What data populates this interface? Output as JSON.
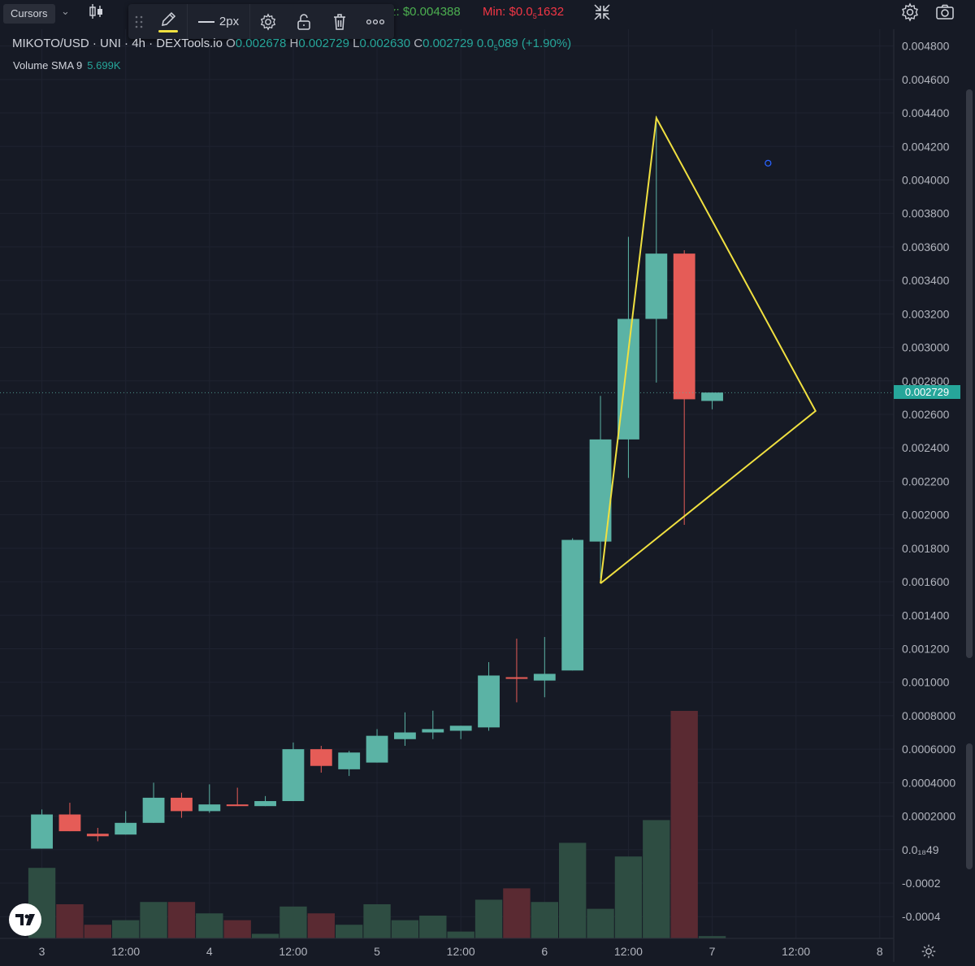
{
  "top_bar": {
    "cursors_tooltip": "Cursors",
    "max_text": "z: $0.004388",
    "min_text": "Min: $0.0",
    "min_sub": "5",
    "min_tail": "1632"
  },
  "drawing_toolbar": {
    "width_label": "2px",
    "pencil_color": "#f0e040"
  },
  "legend": {
    "symbol": "MIKOTO/USD · UNI · 4h · DEXTools.io",
    "o_key": "O",
    "o_val": "0.002678",
    "h_key": "H",
    "h_val": "0.002729",
    "l_key": "L",
    "l_val": "0.002630",
    "c_key": "C",
    "c_val": "0.002729",
    "change_prefix": "0.0",
    "change_sub": "5",
    "change_tail": "089 (+1.90%)"
  },
  "volume_indicator": {
    "label": "Volume SMA 9",
    "value": "5.699K"
  },
  "last_price_label": "0.002729",
  "colors": {
    "background": "#161a25",
    "grid": "#1f2330",
    "up": "#5bb3a5",
    "down": "#e55c57",
    "vol_up": "#2e4d42",
    "vol_down": "#5a2a32",
    "drawing": "#f0e040"
  },
  "chart_data": {
    "type": "candlestick",
    "interval": "4h",
    "y_axis": {
      "range": [
        -0.00053,
        0.0049
      ],
      "tick_values": [
        0.0048,
        0.0046,
        0.0044,
        0.0042,
        0.004,
        0.0038,
        0.0036,
        0.0034,
        0.0032,
        0.003,
        0.0028,
        0.0026,
        0.0024,
        0.0022,
        0.002,
        0.0018,
        0.0016,
        0.0014,
        0.0012,
        0.001,
        0.0008,
        0.0006,
        0.0004,
        0.0002,
        0.0,
        -0.0002,
        -0.0004
      ],
      "tick_labels": [
        "0.004800",
        "0.004600",
        "0.004400",
        "0.004200",
        "0.004000",
        "0.003800",
        "0.003600",
        "0.003400",
        "0.003200",
        "0.003000",
        "0.002800",
        "0.002600",
        "0.002400",
        "0.002200",
        "0.002000",
        "0.001800",
        "0.001600",
        "0.001400",
        "0.001200",
        "0.001000",
        "0.0008000",
        "0.0006000",
        "0.0004000",
        "0.0002000",
        "0.0₁₈49",
        "-0.0002",
        "-0.0004"
      ]
    },
    "x_axis": {
      "range": [
        -1.5,
        30.5
      ],
      "tick_values": [
        0,
        3,
        6,
        9,
        12,
        15,
        18,
        21,
        24,
        27,
        30
      ],
      "tick_labels": [
        "3",
        "12:00",
        "4",
        "12:00",
        "5",
        "12:00",
        "6",
        "12:00",
        "7",
        "12:00",
        "8"
      ]
    },
    "candles": [
      {
        "t": 0,
        "o": 6e-06,
        "h": 0.00024,
        "l": 6e-06,
        "c": 0.00021
      },
      {
        "t": 1,
        "o": 0.00021,
        "h": 0.00028,
        "l": 0.00011,
        "c": 0.00011
      },
      {
        "t": 2,
        "o": 9.5e-05,
        "h": 0.00013,
        "l": 5e-05,
        "c": 8e-05
      },
      {
        "t": 3,
        "o": 9e-05,
        "h": 0.00023,
        "l": 9e-05,
        "c": 0.00016
      },
      {
        "t": 4,
        "o": 0.00016,
        "h": 0.0004,
        "l": 0.00016,
        "c": 0.00031
      },
      {
        "t": 5,
        "o": 0.00031,
        "h": 0.00034,
        "l": 0.00019,
        "c": 0.00023
      },
      {
        "t": 6,
        "o": 0.00023,
        "h": 0.00039,
        "l": 0.00022,
        "c": 0.00027
      },
      {
        "t": 7,
        "o": 0.00027,
        "h": 0.00037,
        "l": 0.00026,
        "c": 0.00026
      },
      {
        "t": 8,
        "o": 0.00026,
        "h": 0.00032,
        "l": 0.00026,
        "c": 0.00029
      },
      {
        "t": 9,
        "o": 0.00029,
        "h": 0.00064,
        "l": 0.00029,
        "c": 0.0006
      },
      {
        "t": 10,
        "o": 0.0006,
        "h": 0.00062,
        "l": 0.00046,
        "c": 0.0005
      },
      {
        "t": 11,
        "o": 0.00048,
        "h": 0.00059,
        "l": 0.00044,
        "c": 0.00058
      },
      {
        "t": 12,
        "o": 0.00052,
        "h": 0.00072,
        "l": 0.00052,
        "c": 0.00068
      },
      {
        "t": 13,
        "o": 0.00066,
        "h": 0.00082,
        "l": 0.00062,
        "c": 0.0007
      },
      {
        "t": 14,
        "o": 0.0007,
        "h": 0.00083,
        "l": 0.00066,
        "c": 0.00072
      },
      {
        "t": 15,
        "o": 0.00071,
        "h": 0.00074,
        "l": 0.00066,
        "c": 0.00074
      },
      {
        "t": 16,
        "o": 0.00073,
        "h": 0.00112,
        "l": 0.00071,
        "c": 0.00104
      },
      {
        "t": 17,
        "o": 0.00103,
        "h": 0.00126,
        "l": 0.00088,
        "c": 0.00102
      },
      {
        "t": 18,
        "o": 0.00101,
        "h": 0.00127,
        "l": 0.00091,
        "c": 0.00105
      },
      {
        "t": 19,
        "o": 0.00107,
        "h": 0.00186,
        "l": 0.00107,
        "c": 0.00185
      },
      {
        "t": 20,
        "o": 0.00184,
        "h": 0.00271,
        "l": 0.00162,
        "c": 0.00245
      },
      {
        "t": 21,
        "o": 0.00245,
        "h": 0.00366,
        "l": 0.00222,
        "c": 0.00317
      },
      {
        "t": 22,
        "o": 0.00317,
        "h": 0.00438,
        "l": 0.00279,
        "c": 0.00356
      },
      {
        "t": 23,
        "o": 0.00356,
        "h": 0.00358,
        "l": 0.00194,
        "c": 0.00269
      },
      {
        "t": 24,
        "o": 0.00268,
        "h": 0.00273,
        "l": 0.00263,
        "c": 0.00273
      }
    ],
    "volume_scale_max": 100,
    "volumes": [
      {
        "t": 0,
        "v": 31,
        "dir": "up"
      },
      {
        "t": 1,
        "v": 15,
        "dir": "down"
      },
      {
        "t": 2,
        "v": 6,
        "dir": "down"
      },
      {
        "t": 3,
        "v": 8,
        "dir": "up"
      },
      {
        "t": 4,
        "v": 16,
        "dir": "up"
      },
      {
        "t": 5,
        "v": 16,
        "dir": "down"
      },
      {
        "t": 6,
        "v": 11,
        "dir": "up"
      },
      {
        "t": 7,
        "v": 8,
        "dir": "down"
      },
      {
        "t": 8,
        "v": 2,
        "dir": "up"
      },
      {
        "t": 9,
        "v": 14,
        "dir": "up"
      },
      {
        "t": 10,
        "v": 11,
        "dir": "down"
      },
      {
        "t": 11,
        "v": 6,
        "dir": "up"
      },
      {
        "t": 12,
        "v": 15,
        "dir": "up"
      },
      {
        "t": 13,
        "v": 8,
        "dir": "up"
      },
      {
        "t": 14,
        "v": 10,
        "dir": "up"
      },
      {
        "t": 15,
        "v": 3,
        "dir": "up"
      },
      {
        "t": 16,
        "v": 17,
        "dir": "up"
      },
      {
        "t": 17,
        "v": 22,
        "dir": "down"
      },
      {
        "t": 18,
        "v": 16,
        "dir": "up"
      },
      {
        "t": 19,
        "v": 42,
        "dir": "up"
      },
      {
        "t": 20,
        "v": 13,
        "dir": "up"
      },
      {
        "t": 21,
        "v": 36,
        "dir": "up"
      },
      {
        "t": 22,
        "v": 52,
        "dir": "up"
      },
      {
        "t": 23,
        "v": 100,
        "dir": "down"
      },
      {
        "t": 24,
        "v": 1,
        "dir": "up"
      }
    ],
    "last_price": 0.002729,
    "drawing": {
      "type": "polyline",
      "points": [
        [
          20,
          0.00159
        ],
        [
          22,
          0.00437
        ],
        [
          27.7,
          0.00262
        ],
        [
          20,
          0.00159
        ]
      ]
    },
    "marker_point": [
      26,
      0.0041
    ]
  }
}
